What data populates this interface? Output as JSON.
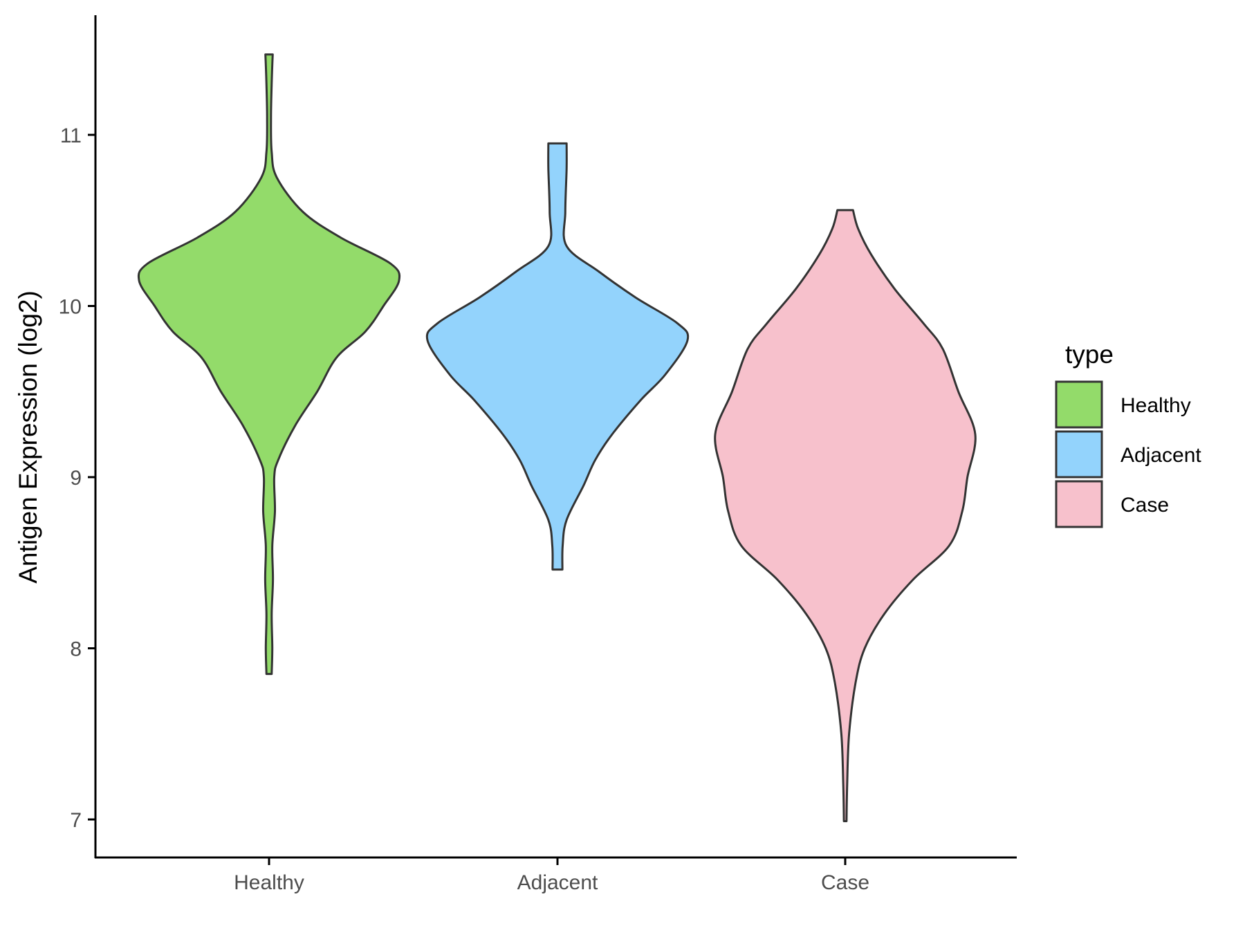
{
  "chart_data": {
    "type": "violin",
    "title": "",
    "xlabel": "",
    "ylabel": "Antigen Expression (log2)",
    "ylim": [
      6.75,
      11.7
    ],
    "yticks": [
      7,
      8,
      9,
      10,
      11
    ],
    "categories": [
      "Healthy",
      "Adjacent",
      "Case"
    ],
    "grid": false,
    "legend": {
      "title": "type",
      "position": "right",
      "entries": [
        "Healthy",
        "Adjacent",
        "Case"
      ]
    },
    "colors": {
      "Healthy": "#93DB6A",
      "Adjacent": "#93D3FC",
      "Case": "#F7C1CC",
      "outline": "#333333",
      "axis": "#000000"
    },
    "series": [
      {
        "name": "Healthy",
        "min": 7.85,
        "max": 11.47,
        "density": [
          [
            7.85,
            0.02
          ],
          [
            8.0,
            0.025
          ],
          [
            8.2,
            0.02
          ],
          [
            8.4,
            0.03
          ],
          [
            8.6,
            0.025
          ],
          [
            8.8,
            0.045
          ],
          [
            9.0,
            0.04
          ],
          [
            9.1,
            0.07
          ],
          [
            9.3,
            0.2
          ],
          [
            9.5,
            0.37
          ],
          [
            9.7,
            0.52
          ],
          [
            9.85,
            0.74
          ],
          [
            10.0,
            0.88
          ],
          [
            10.15,
            1.0
          ],
          [
            10.25,
            0.93
          ],
          [
            10.4,
            0.55
          ],
          [
            10.55,
            0.26
          ],
          [
            10.75,
            0.06
          ],
          [
            10.9,
            0.02
          ],
          [
            11.1,
            0.015
          ],
          [
            11.3,
            0.02
          ],
          [
            11.47,
            0.028
          ]
        ]
      },
      {
        "name": "Adjacent",
        "min": 8.46,
        "max": 10.95,
        "density": [
          [
            8.46,
            0.038
          ],
          [
            8.6,
            0.04
          ],
          [
            8.75,
            0.07
          ],
          [
            8.95,
            0.2
          ],
          [
            9.1,
            0.29
          ],
          [
            9.25,
            0.42
          ],
          [
            9.45,
            0.64
          ],
          [
            9.6,
            0.83
          ],
          [
            9.8,
            1.0
          ],
          [
            9.9,
            0.92
          ],
          [
            10.05,
            0.6
          ],
          [
            10.2,
            0.32
          ],
          [
            10.35,
            0.07
          ],
          [
            10.55,
            0.06
          ],
          [
            10.8,
            0.07
          ],
          [
            10.95,
            0.07
          ]
        ]
      },
      {
        "name": "Case",
        "min": 6.99,
        "max": 10.56,
        "density": [
          [
            6.99,
            0.01
          ],
          [
            7.2,
            0.015
          ],
          [
            7.5,
            0.03
          ],
          [
            7.8,
            0.08
          ],
          [
            8.0,
            0.15
          ],
          [
            8.2,
            0.3
          ],
          [
            8.4,
            0.52
          ],
          [
            8.6,
            0.8
          ],
          [
            8.8,
            0.9
          ],
          [
            9.0,
            0.94
          ],
          [
            9.25,
            1.0
          ],
          [
            9.5,
            0.87
          ],
          [
            9.75,
            0.75
          ],
          [
            9.9,
            0.6
          ],
          [
            10.1,
            0.38
          ],
          [
            10.3,
            0.2
          ],
          [
            10.45,
            0.1
          ],
          [
            10.56,
            0.06
          ]
        ]
      }
    ]
  }
}
